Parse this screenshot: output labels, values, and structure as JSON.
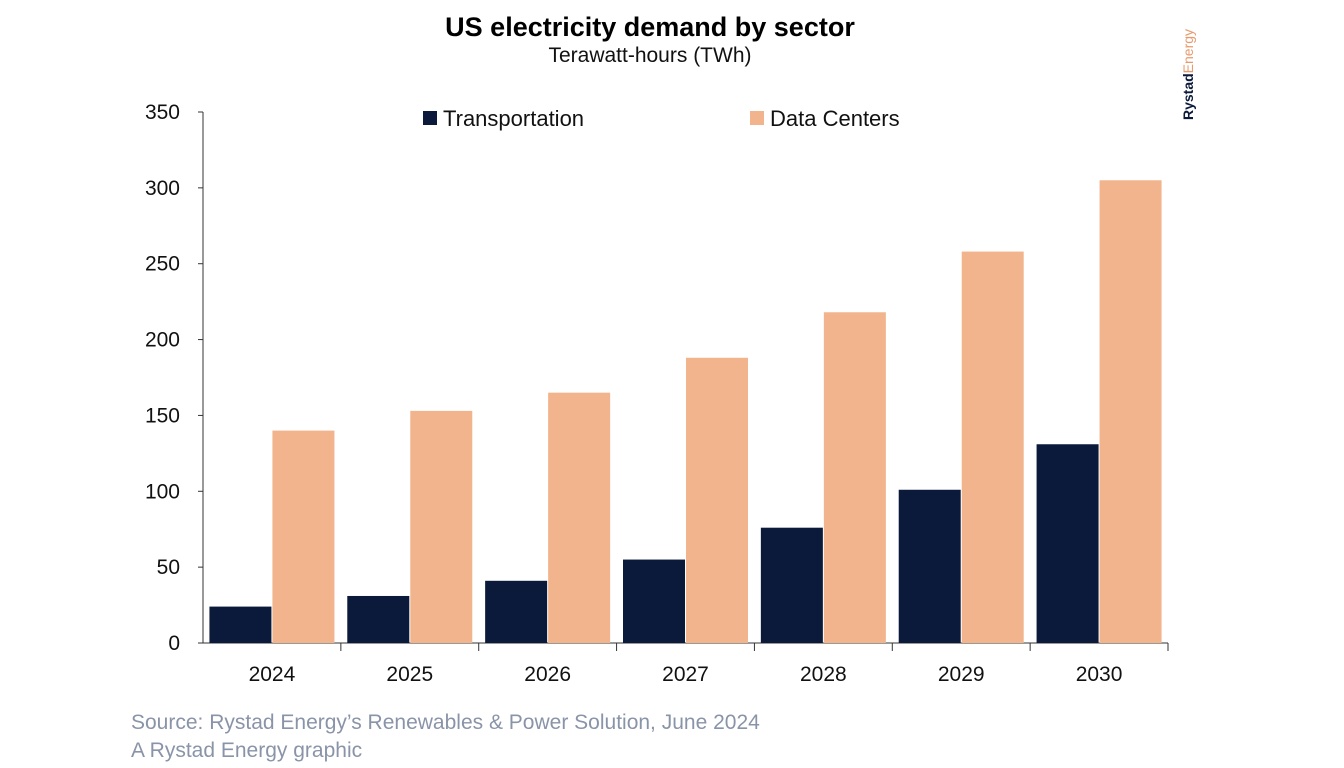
{
  "chart_data": {
    "type": "bar",
    "title": "US electricity demand by sector",
    "subtitle": "Terawatt-hours (TWh)",
    "xlabel": "",
    "ylabel": "",
    "categories": [
      "2024",
      "2025",
      "2026",
      "2027",
      "2028",
      "2029",
      "2030"
    ],
    "series": [
      {
        "name": "Transportation",
        "color": "#0b1a3a",
        "values": [
          24,
          31,
          41,
          55,
          76,
          101,
          131
        ]
      },
      {
        "name": "Data Centers",
        "color": "#f2b48c",
        "values": [
          140,
          153,
          165,
          188,
          218,
          258,
          305
        ]
      }
    ],
    "ylim": [
      0,
      350
    ],
    "yticks": [
      "0",
      "50",
      "100",
      "150",
      "200",
      "250",
      "300",
      "350"
    ],
    "grid": false,
    "legend": "top"
  },
  "footer": {
    "source": "Source: Rystad Energy’s Renewables & Power Solution, June 2024",
    "credit": "A Rystad Energy graphic"
  },
  "logo": {
    "part1": "Rystad",
    "part2": "Energy"
  }
}
